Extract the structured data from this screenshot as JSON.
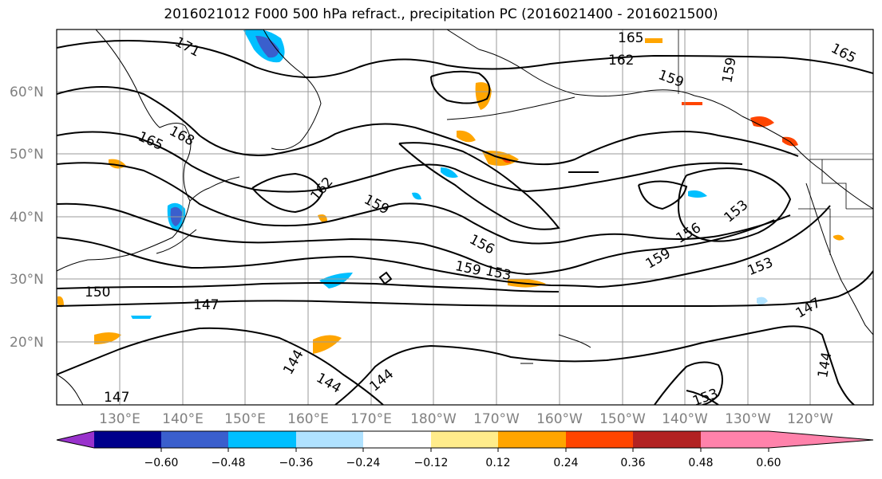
{
  "title": "2016021012 F000 500 hPa refract., precipitation PC (2016021400 - 2016021500)",
  "lat_labels": [
    "60°N",
    "50°N",
    "40°N",
    "30°N",
    "20°N"
  ],
  "lon_labels": [
    "130°E",
    "140°E",
    "150°E",
    "160°E",
    "170°E",
    "180°W",
    "170°W",
    "160°W",
    "150°W",
    "140°W",
    "130°W",
    "120°W"
  ],
  "colorbar": {
    "ticks": [
      "−0.60",
      "−0.48",
      "−0.36",
      "−0.24",
      "−0.12",
      "0.12",
      "0.24",
      "0.36",
      "0.48",
      "0.60"
    ],
    "colors": [
      "#9932cc",
      "#00008b",
      "#3a5fcd",
      "#00bfff",
      "#b0e2ff",
      "#ffffff",
      "#ffec8b",
      "#ffa500",
      "#ff4500",
      "#b22222",
      "#ff82ab"
    ]
  },
  "contour_labels": [
    {
      "text": "171"
    },
    {
      "text": "165"
    },
    {
      "text": "168"
    },
    {
      "text": "162"
    },
    {
      "text": "165"
    },
    {
      "text": "162"
    },
    {
      "text": "159"
    },
    {
      "text": "165"
    },
    {
      "text": "159"
    },
    {
      "text": "159"
    },
    {
      "text": "156"
    },
    {
      "text": "156"
    },
    {
      "text": "159"
    },
    {
      "text": "153"
    },
    {
      "text": "153"
    },
    {
      "text": "159"
    },
    {
      "text": "153"
    },
    {
      "text": "150"
    },
    {
      "text": "147"
    },
    {
      "text": "147"
    },
    {
      "text": "144"
    },
    {
      "text": "144"
    },
    {
      "text": "144"
    },
    {
      "text": "144"
    },
    {
      "text": "147"
    },
    {
      "text": "153"
    }
  ]
}
